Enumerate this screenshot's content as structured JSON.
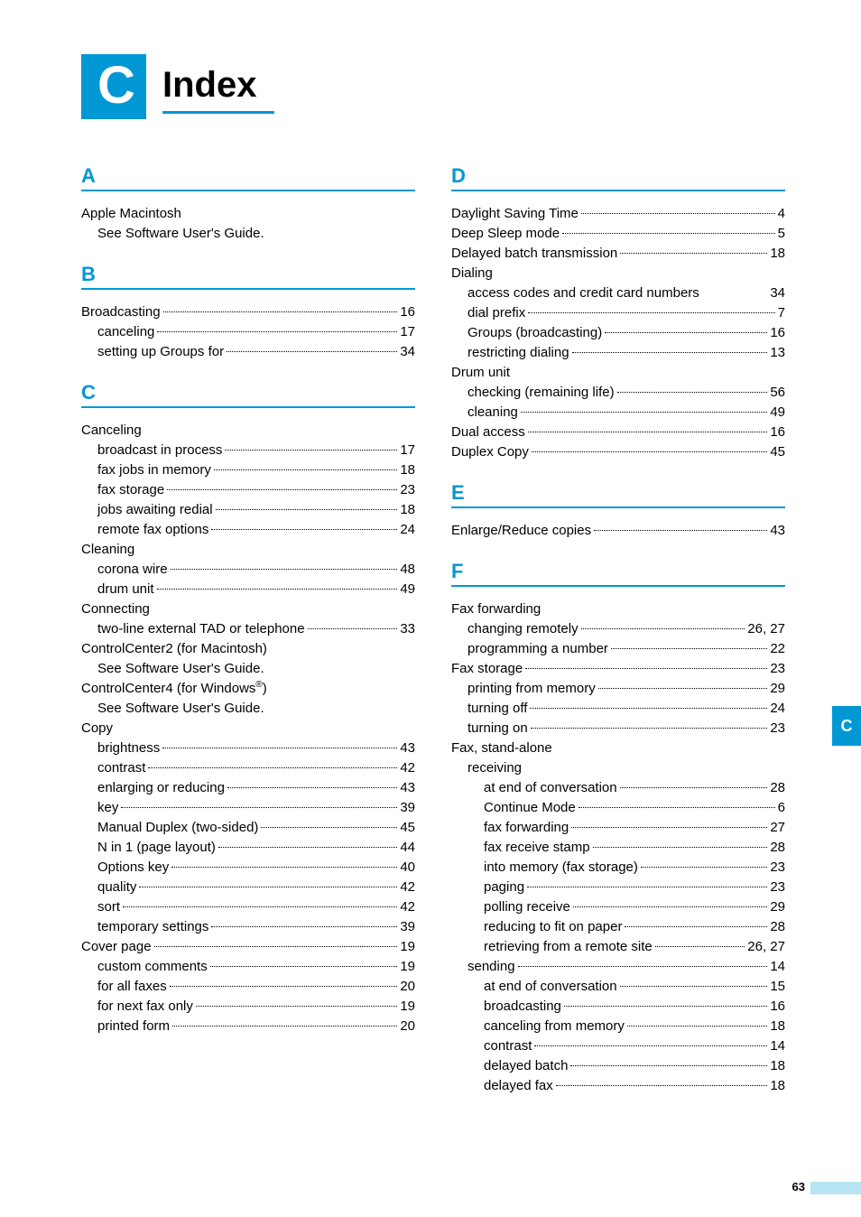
{
  "page": {
    "badge_letter": "C",
    "title": "Index",
    "side_tab": "C",
    "page_number": "63"
  },
  "sections_left": [
    {
      "letter": "A",
      "entries": [
        {
          "type": "plain",
          "indent": 0,
          "text": "Apple Macintosh"
        },
        {
          "type": "plain",
          "indent": 1,
          "text": "See Software User's Guide."
        }
      ]
    },
    {
      "letter": "B",
      "entries": [
        {
          "type": "row",
          "indent": 0,
          "label": "Broadcasting",
          "page": "16"
        },
        {
          "type": "row",
          "indent": 1,
          "label": "canceling",
          "page": "17"
        },
        {
          "type": "row",
          "indent": 1,
          "label": "setting up Groups for",
          "page": "34"
        }
      ]
    },
    {
      "letter": "C",
      "entries": [
        {
          "type": "plain",
          "indent": 0,
          "text": "Canceling"
        },
        {
          "type": "row",
          "indent": 1,
          "label": "broadcast in process",
          "page": "17"
        },
        {
          "type": "row",
          "indent": 1,
          "label": "fax jobs in memory",
          "page": "18"
        },
        {
          "type": "row",
          "indent": 1,
          "label": "fax storage",
          "page": "23"
        },
        {
          "type": "row",
          "indent": 1,
          "label": "jobs awaiting redial",
          "page": "18"
        },
        {
          "type": "row",
          "indent": 1,
          "label": "remote fax options",
          "page": "24"
        },
        {
          "type": "plain",
          "indent": 0,
          "text": "Cleaning"
        },
        {
          "type": "row",
          "indent": 1,
          "label": "corona wire",
          "page": "48"
        },
        {
          "type": "row",
          "indent": 1,
          "label": "drum unit",
          "page": "49"
        },
        {
          "type": "plain",
          "indent": 0,
          "text": "Connecting"
        },
        {
          "type": "row",
          "indent": 1,
          "label": "two-line external TAD or telephone",
          "page": "33"
        },
        {
          "type": "plain",
          "indent": 0,
          "text": "ControlCenter2 (for Macintosh)"
        },
        {
          "type": "plain",
          "indent": 1,
          "text": "See Software User's Guide."
        },
        {
          "type": "plain",
          "indent": 0,
          "text": "ControlCenter4 (for Windows",
          "suffix_sup": "®",
          "suffix": ")"
        },
        {
          "type": "plain",
          "indent": 1,
          "text": "See Software User's Guide."
        },
        {
          "type": "plain",
          "indent": 0,
          "text": "Copy"
        },
        {
          "type": "row",
          "indent": 1,
          "label": "brightness",
          "page": "43"
        },
        {
          "type": "row",
          "indent": 1,
          "label": "contrast",
          "page": "42"
        },
        {
          "type": "row",
          "indent": 1,
          "label": "enlarging or reducing",
          "page": "43"
        },
        {
          "type": "row",
          "indent": 1,
          "label": "key",
          "page": "39"
        },
        {
          "type": "row",
          "indent": 1,
          "label": "Manual Duplex (two-sided)",
          "page": "45"
        },
        {
          "type": "row",
          "indent": 1,
          "label": "N in 1 (page layout)",
          "page": "44"
        },
        {
          "type": "row",
          "indent": 1,
          "label": "Options key",
          "page": "40"
        },
        {
          "type": "row",
          "indent": 1,
          "label": "quality",
          "page": "42"
        },
        {
          "type": "row",
          "indent": 1,
          "label": "sort",
          "page": "42"
        },
        {
          "type": "row",
          "indent": 1,
          "label": "temporary settings",
          "page": "39"
        },
        {
          "type": "row",
          "indent": 0,
          "label": "Cover page",
          "page": "19"
        },
        {
          "type": "row",
          "indent": 1,
          "label": "custom comments",
          "page": "19"
        },
        {
          "type": "row",
          "indent": 1,
          "label": "for all faxes",
          "page": "20"
        },
        {
          "type": "row",
          "indent": 1,
          "label": "for next fax only",
          "page": "19"
        },
        {
          "type": "row",
          "indent": 1,
          "label": "printed form",
          "page": "20"
        }
      ]
    }
  ],
  "sections_right": [
    {
      "letter": "D",
      "entries": [
        {
          "type": "row",
          "indent": 0,
          "label": "Daylight Saving Time",
          "page": "4"
        },
        {
          "type": "row",
          "indent": 0,
          "label": "Deep Sleep mode",
          "page": "5"
        },
        {
          "type": "row",
          "indent": 0,
          "label": "Delayed batch transmission",
          "page": "18"
        },
        {
          "type": "plain",
          "indent": 0,
          "text": "Dialing"
        },
        {
          "type": "row",
          "indent": 1,
          "label": "access codes and credit card numbers",
          "page": "34",
          "nodots": true
        },
        {
          "type": "row",
          "indent": 1,
          "label": "dial prefix",
          "page": "7"
        },
        {
          "type": "row",
          "indent": 1,
          "label": "Groups (broadcasting)",
          "page": "16"
        },
        {
          "type": "row",
          "indent": 1,
          "label": "restricting dialing",
          "page": "13"
        },
        {
          "type": "plain",
          "indent": 0,
          "text": "Drum unit"
        },
        {
          "type": "row",
          "indent": 1,
          "label": "checking (remaining life)",
          "page": "56"
        },
        {
          "type": "row",
          "indent": 1,
          "label": "cleaning",
          "page": "49"
        },
        {
          "type": "row",
          "indent": 0,
          "label": "Dual access",
          "page": "16"
        },
        {
          "type": "row",
          "indent": 0,
          "label": "Duplex Copy",
          "page": "45"
        }
      ]
    },
    {
      "letter": "E",
      "entries": [
        {
          "type": "row",
          "indent": 0,
          "label": "Enlarge/Reduce copies",
          "page": "43"
        }
      ]
    },
    {
      "letter": "F",
      "entries": [
        {
          "type": "plain",
          "indent": 0,
          "text": "Fax forwarding"
        },
        {
          "type": "row",
          "indent": 1,
          "label": "changing remotely",
          "page": "26, 27"
        },
        {
          "type": "row",
          "indent": 1,
          "label": "programming a number",
          "page": "22"
        },
        {
          "type": "row",
          "indent": 0,
          "label": "Fax storage",
          "page": "23"
        },
        {
          "type": "row",
          "indent": 1,
          "label": "printing from memory",
          "page": "29"
        },
        {
          "type": "row",
          "indent": 1,
          "label": "turning off",
          "page": "24"
        },
        {
          "type": "row",
          "indent": 1,
          "label": "turning on",
          "page": "23"
        },
        {
          "type": "plain",
          "indent": 0,
          "text": "Fax, stand-alone"
        },
        {
          "type": "plain",
          "indent": 1,
          "text": "receiving"
        },
        {
          "type": "row",
          "indent": 2,
          "label": "at end of conversation",
          "page": "28"
        },
        {
          "type": "row",
          "indent": 2,
          "label": "Continue Mode",
          "page": "6"
        },
        {
          "type": "row",
          "indent": 2,
          "label": "fax forwarding",
          "page": "27"
        },
        {
          "type": "row",
          "indent": 2,
          "label": "fax receive stamp",
          "page": "28"
        },
        {
          "type": "row",
          "indent": 2,
          "label": "into memory (fax storage)",
          "page": "23"
        },
        {
          "type": "row",
          "indent": 2,
          "label": "paging",
          "page": "23"
        },
        {
          "type": "row",
          "indent": 2,
          "label": "polling receive",
          "page": "29"
        },
        {
          "type": "row",
          "indent": 2,
          "label": "reducing to fit on paper",
          "page": "28"
        },
        {
          "type": "row",
          "indent": 2,
          "label": "retrieving from a remote site",
          "page": "26, 27"
        },
        {
          "type": "row",
          "indent": 1,
          "label": "sending",
          "page": "14"
        },
        {
          "type": "row",
          "indent": 2,
          "label": "at end of conversation",
          "page": "15"
        },
        {
          "type": "row",
          "indent": 2,
          "label": "broadcasting",
          "page": "16"
        },
        {
          "type": "row",
          "indent": 2,
          "label": "canceling from memory",
          "page": "18"
        },
        {
          "type": "row",
          "indent": 2,
          "label": "contrast",
          "page": "14"
        },
        {
          "type": "row",
          "indent": 2,
          "label": "delayed batch",
          "page": "18"
        },
        {
          "type": "row",
          "indent": 2,
          "label": "delayed fax",
          "page": "18"
        }
      ]
    }
  ]
}
